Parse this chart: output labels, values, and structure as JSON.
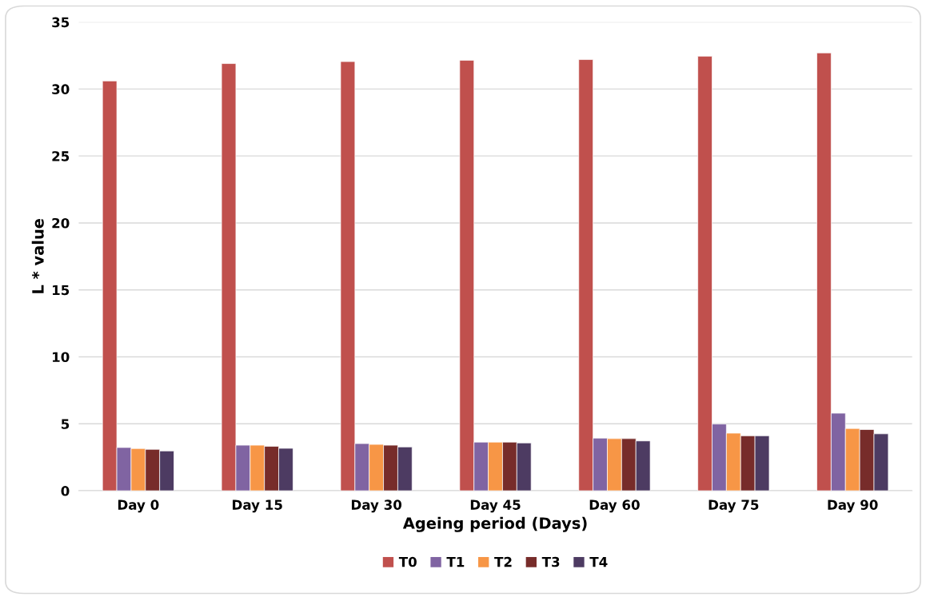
{
  "chart_data": {
    "type": "bar",
    "xlabel": "Ageing period (Days)",
    "ylabel": "L * value",
    "categories": [
      "Day 0",
      "Day 15",
      "Day 30",
      "Day 45",
      "Day 60",
      "Day 75",
      "Day 90"
    ],
    "series": [
      {
        "name": "T0",
        "color": "#c0504d",
        "values": [
          30.6,
          31.9,
          32.05,
          32.15,
          32.2,
          32.45,
          32.7
        ]
      },
      {
        "name": "T1",
        "color": "#8064a2",
        "values": [
          3.23,
          3.4,
          3.52,
          3.63,
          3.93,
          4.98,
          5.79
        ]
      },
      {
        "name": "T2",
        "color": "#f79646",
        "values": [
          3.15,
          3.4,
          3.46,
          3.63,
          3.89,
          4.3,
          4.65
        ]
      },
      {
        "name": "T3",
        "color": "#772c2a",
        "values": [
          3.09,
          3.32,
          3.4,
          3.63,
          3.89,
          4.1,
          4.57
        ]
      },
      {
        "name": "T4",
        "color": "#4d3b62",
        "values": [
          2.97,
          3.17,
          3.27,
          3.57,
          3.72,
          4.1,
          4.25
        ]
      }
    ],
    "ylim": [
      0,
      35
    ],
    "yticks": [
      0,
      5,
      10,
      15,
      20,
      25,
      30,
      35
    ],
    "grid": "y",
    "legend": "bottom"
  }
}
